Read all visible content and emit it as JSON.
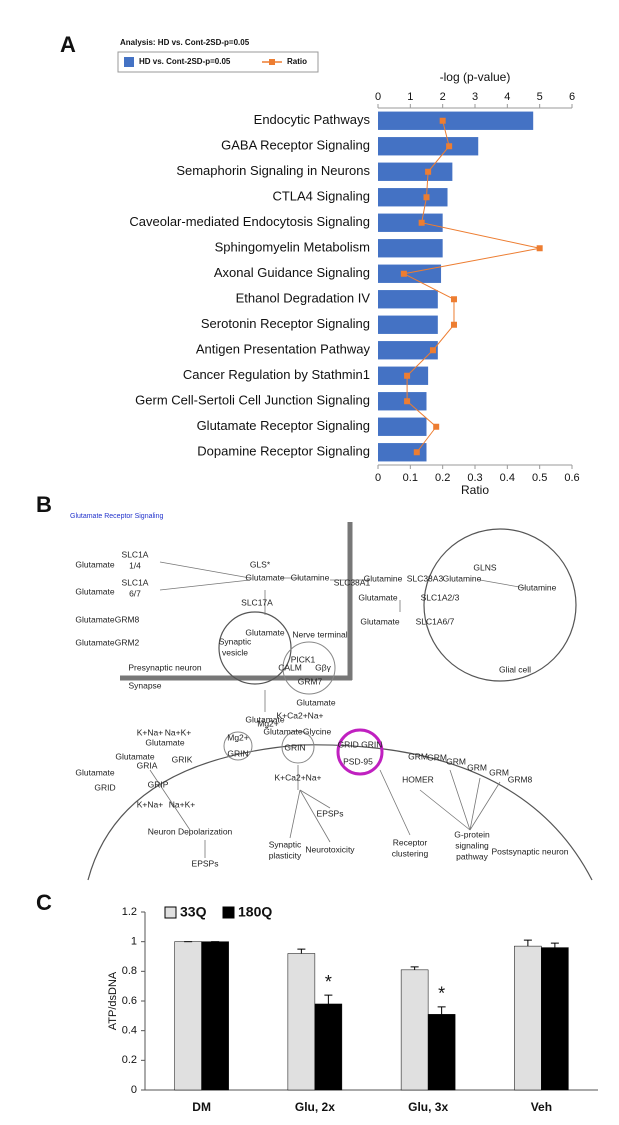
{
  "chart_data": [
    {
      "type": "bar",
      "orientation": "horizontal",
      "panel": "A",
      "subtitle": "Analysis: HD vs. Cont-2SD-p=0.05",
      "categories": [
        "Endocytic Pathways",
        "GABA Receptor Signaling",
        "Semaphorin Signaling in Neurons",
        "CTLA4 Signaling",
        "Caveolar-mediated Endocytosis Signaling",
        "Sphingomyelin Metabolism",
        "Axonal Guidance Signaling",
        "Ethanol Degradation IV",
        "Serotonin Receptor Signaling",
        "Antigen Presentation Pathway",
        "Cancer Regulation by Stathmin1",
        "Germ Cell-Sertoli Cell Junction Signaling",
        "Glutamate Receptor Signaling",
        "Dopamine Receptor Signaling"
      ],
      "series": [
        {
          "name": "HD vs. Cont-2SD-p=0.05",
          "color": "#4472c4",
          "axis": "x2",
          "values": [
            4.8,
            3.1,
            2.3,
            2.15,
            2.0,
            2.0,
            1.95,
            1.85,
            1.85,
            1.85,
            1.55,
            1.5,
            1.5,
            1.5
          ]
        },
        {
          "name": "Ratio",
          "type": "line",
          "color": "#ed7d31",
          "values": [
            0.2,
            0.22,
            0.155,
            0.15,
            0.135,
            0.5,
            0.08,
            0.235,
            0.235,
            0.17,
            0.09,
            0.09,
            0.18,
            0.12
          ]
        }
      ],
      "x2label": "-log (p-value)",
      "x2lim": [
        0,
        6
      ],
      "x2ticks": [
        0,
        1,
        2,
        3,
        4,
        5,
        6
      ],
      "xlabel": "Ratio",
      "xlim": [
        0,
        0.6
      ],
      "xticks": [
        0,
        0.1,
        0.2,
        0.3,
        0.4,
        0.5,
        0.6
      ]
    },
    {
      "type": "bar",
      "panel": "C",
      "categories": [
        "DM",
        "Glu, 2x",
        "Glu, 3x",
        "Veh"
      ],
      "series": [
        {
          "name": "33Q",
          "color": "#e0e0e0",
          "values": [
            1,
            0.92,
            0.81,
            0.97
          ],
          "errors": [
            0,
            0.03,
            0.02,
            0.04
          ]
        },
        {
          "name": "180Q",
          "color": "#000000",
          "values": [
            1,
            0.58,
            0.51,
            0.96
          ],
          "errors": [
            0,
            0.06,
            0.05,
            0.03
          ]
        }
      ],
      "annotations": [
        "*",
        "*"
      ],
      "ylabel": "ATP/dsDNA",
      "ylim": [
        0,
        1.2
      ],
      "yticks": [
        0,
        0.2,
        0.4,
        0.6,
        0.8,
        1,
        1.2
      ]
    }
  ],
  "diagram": {
    "panel": "B",
    "title": "Glutamate Receptor Signaling",
    "labels": [
      "SLC1A",
      "1/4",
      "Glutamate",
      "SLC1A",
      "6/7",
      "Glutamate",
      "GRM8",
      "Glutamate",
      "GRM2",
      "Glutamate",
      "Presynaptic neuron",
      "Synapse",
      "GLS*",
      "Glutamate",
      "Glutamine",
      "SLC38A1",
      "SLC17A",
      "Glutamate",
      "Synaptic",
      "vesicle",
      "Nerve terminal",
      "PICK1",
      "CALM",
      "Gβγ",
      "GRM7",
      "Glutamate",
      "Glutamate",
      "Glutamine",
      "SLC38A3",
      "Glutamine",
      "GLNS",
      "Glutamine",
      "Glutamate",
      "SLC1A2/3",
      "Glutamate",
      "SLC1A6/7",
      "Glial cell",
      "K+Na+",
      "Na+K+",
      "Glutamate",
      "Glutamate",
      "GRIA",
      "GRIK",
      "Glutamate",
      "GRID",
      "GRIP",
      "K+Na+",
      "Na+K+",
      "Neuron Depolarization",
      "EPSPs",
      "Mg2+",
      "GRIN",
      "Mg2+",
      "K+Ca2+Na+",
      "Glutamate",
      "Glycine",
      "GRIN",
      "K+Ca2+Na+",
      "EPSPs",
      "Synaptic",
      "plasticity",
      "Neurotoxicity",
      "GRID GRIN",
      "PSD-95",
      "Receptor",
      "clustering",
      "GRM",
      "HOMER",
      "GRM",
      "GRM",
      "GRM",
      "GRM",
      "GRM8",
      "G-protein",
      "signaling",
      "pathway",
      "Postsynaptic neuron"
    ]
  }
}
